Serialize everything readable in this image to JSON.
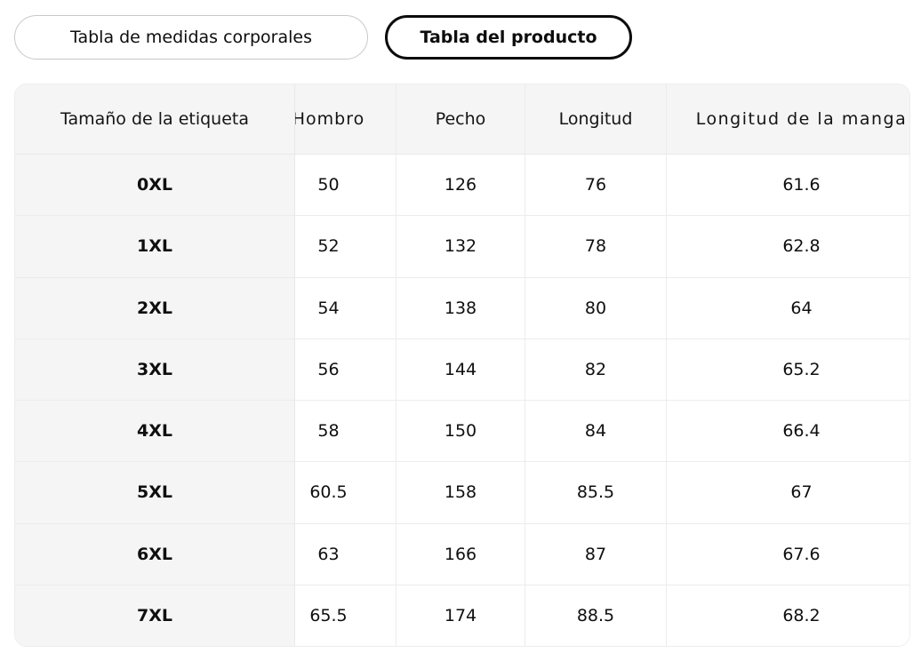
{
  "tabs": {
    "body_measurements": "Tabla de medidas corporales",
    "product": "Tabla del producto"
  },
  "table": {
    "columns": [
      "Tamaño de la etiqueta",
      "Hombro",
      "Pecho",
      "Longitud",
      "Longitud de la manga"
    ],
    "rows": [
      {
        "label": "0XL",
        "values": [
          "50",
          "126",
          "76",
          "61.6"
        ]
      },
      {
        "label": "1XL",
        "values": [
          "52",
          "132",
          "78",
          "62.8"
        ]
      },
      {
        "label": "2XL",
        "values": [
          "54",
          "138",
          "80",
          "64"
        ]
      },
      {
        "label": "3XL",
        "values": [
          "56",
          "144",
          "82",
          "65.2"
        ]
      },
      {
        "label": "4XL",
        "values": [
          "58",
          "150",
          "84",
          "66.4"
        ]
      },
      {
        "label": "5XL",
        "values": [
          "60.5",
          "158",
          "85.5",
          "67"
        ]
      },
      {
        "label": "6XL",
        "values": [
          "63",
          "166",
          "87",
          "67.6"
        ]
      },
      {
        "label": "7XL",
        "values": [
          "65.5",
          "174",
          "88.5",
          "68.2"
        ]
      }
    ],
    "selection": {
      "row_label": "3XL",
      "column": "Pecho",
      "value": "144"
    },
    "highlighted_row_label": "7XL",
    "colors": {
      "header_bg": "#f5f5f6",
      "column_trail_bg": "#f5f5f6",
      "selected_cell_bg": "#e9e9e9",
      "highlighted_row_bg": "#fdebdb",
      "grid_border": "#ececec",
      "selected_tab_border": "#0c0c0c",
      "unselected_tab_border": "#c8c8c8"
    }
  }
}
